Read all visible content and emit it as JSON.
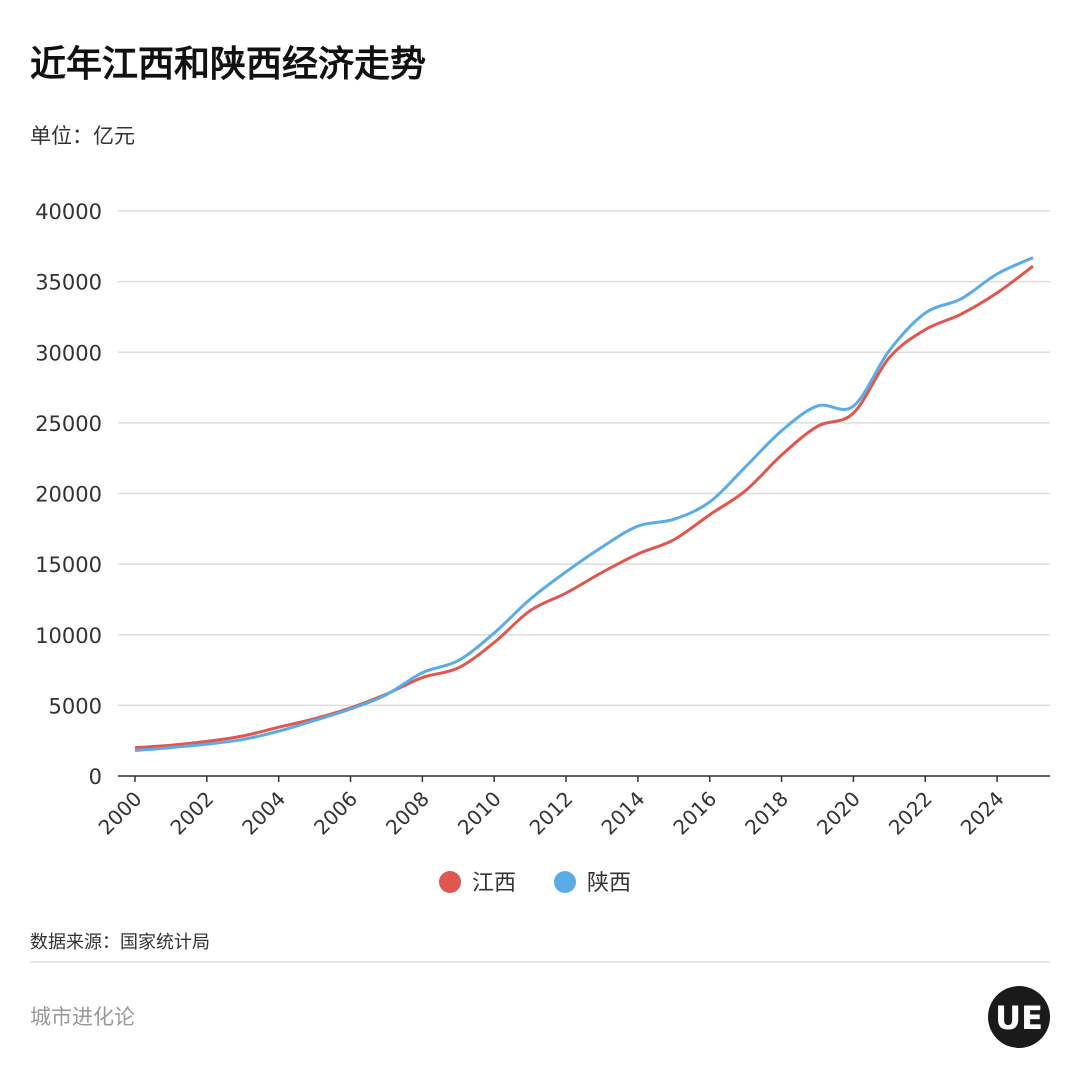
{
  "chart_data": {
    "type": "line",
    "title": "近年江西和陕西经济走势",
    "unit_label": "单位：亿元",
    "x": [
      2000,
      2001,
      2002,
      2003,
      2004,
      2005,
      2006,
      2007,
      2008,
      2009,
      2010,
      2011,
      2012,
      2013,
      2014,
      2015,
      2016,
      2017,
      2018,
      2019,
      2020,
      2021,
      2022,
      2023,
      2024,
      2025
    ],
    "series": [
      {
        "name": "江西",
        "color": "#e0574f",
        "values": [
          2003,
          2176,
          2450,
          2831,
          3457,
          4057,
          4821,
          5800,
          6971,
          7655,
          9451,
          11703,
          12949,
          14410,
          15715,
          16724,
          18499,
          20210,
          22716,
          24757,
          25691,
          29620,
          31600,
          32700,
          34200,
          36100
        ]
      },
      {
        "name": "陕西",
        "color": "#5aabe6",
        "values": [
          1804,
          2011,
          2253,
          2588,
          3176,
          3934,
          4744,
          5757,
          7315,
          8170,
          10124,
          12512,
          14454,
          16205,
          17690,
          18172,
          19400,
          21899,
          24438,
          26200,
          26182,
          30121,
          32773,
          33786,
          35540,
          36700
        ]
      }
    ],
    "xlim": [
      2000,
      2025
    ],
    "xticks": [
      2000,
      2002,
      2004,
      2006,
      2008,
      2010,
      2012,
      2014,
      2016,
      2018,
      2020,
      2022,
      2024
    ],
    "ylim": [
      0,
      40000
    ],
    "yticks": [
      0,
      5000,
      10000,
      15000,
      20000,
      25000,
      30000,
      35000,
      40000
    ],
    "grid": true,
    "source": "数据来源：国家统计局",
    "footer": "城市进化论",
    "logo_text": "UE"
  }
}
